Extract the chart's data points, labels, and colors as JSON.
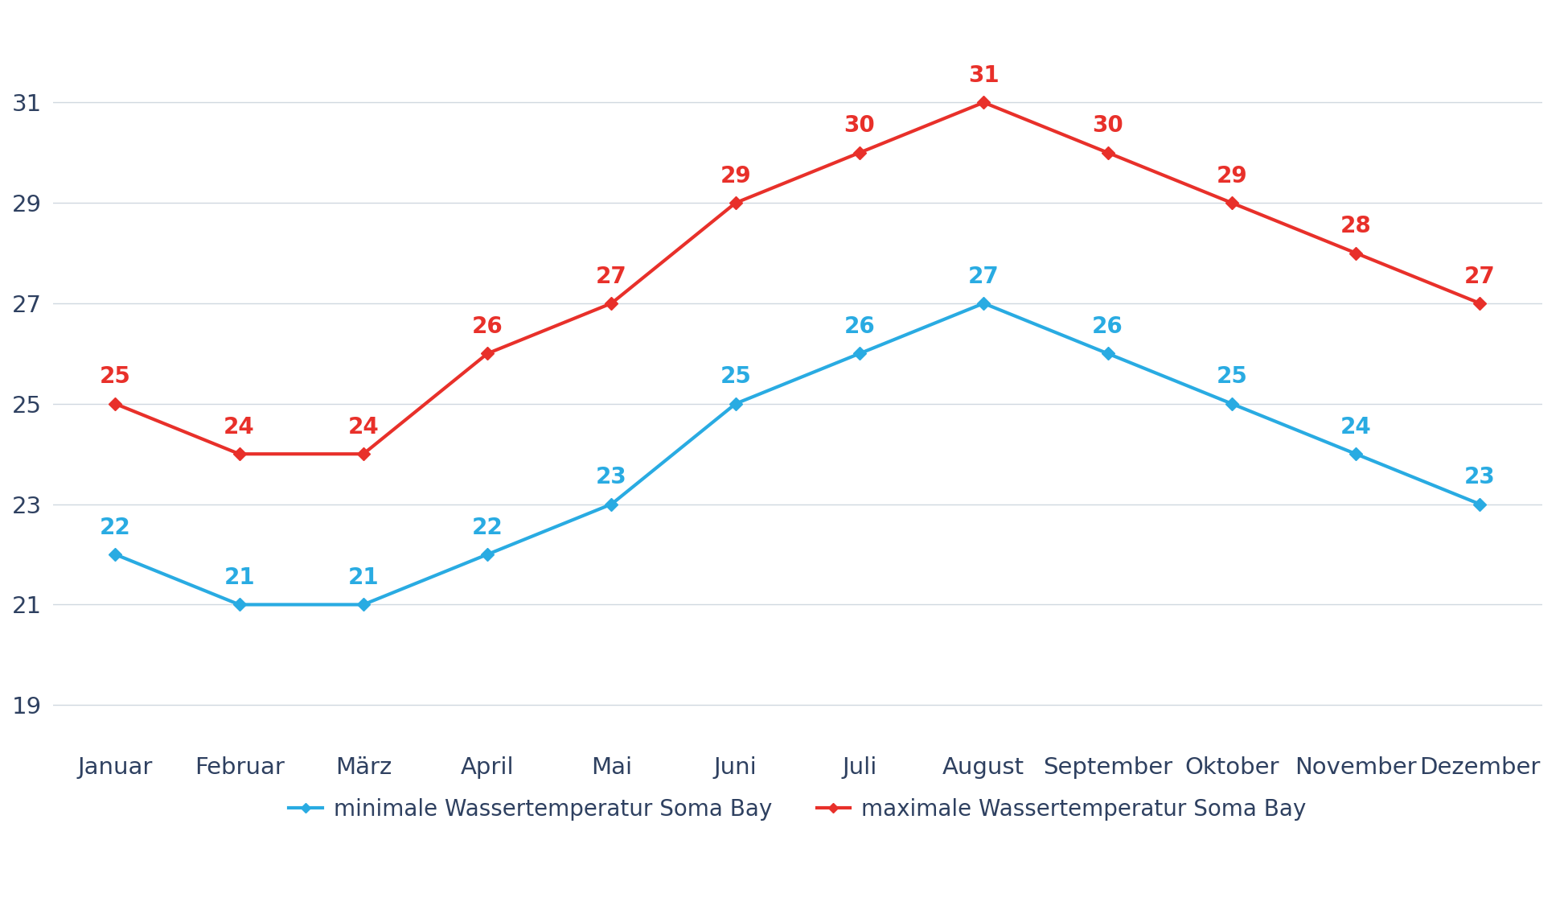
{
  "months": [
    "Januar",
    "Februar",
    "März",
    "April",
    "Mai",
    "Juni",
    "Juli",
    "August",
    "September",
    "Oktober",
    "November",
    "Dezember"
  ],
  "min_temps": [
    22,
    21,
    21,
    22,
    23,
    25,
    26,
    27,
    26,
    25,
    24,
    23
  ],
  "max_temps": [
    25,
    24,
    24,
    26,
    27,
    29,
    30,
    31,
    30,
    29,
    28,
    27
  ],
  "min_color": "#29abe2",
  "max_color": "#e8302a",
  "min_label": "minimale Wassertemperatur Soma Bay",
  "max_label": "maximale Wassertemperatur Soma Bay",
  "yticks": [
    19,
    21,
    23,
    25,
    27,
    29,
    31
  ],
  "ylim": [
    18.2,
    32.8
  ],
  "background_color": "#ffffff",
  "grid_color": "#d0d8e0",
  "tick_label_color": "#2e4060",
  "annotation_color_min": "#29abe2",
  "annotation_color_max": "#e8302a",
  "linewidth": 3.0,
  "marker_size": 8,
  "font_size_ticks": 21,
  "font_size_legend": 20,
  "font_size_annotations": 20
}
